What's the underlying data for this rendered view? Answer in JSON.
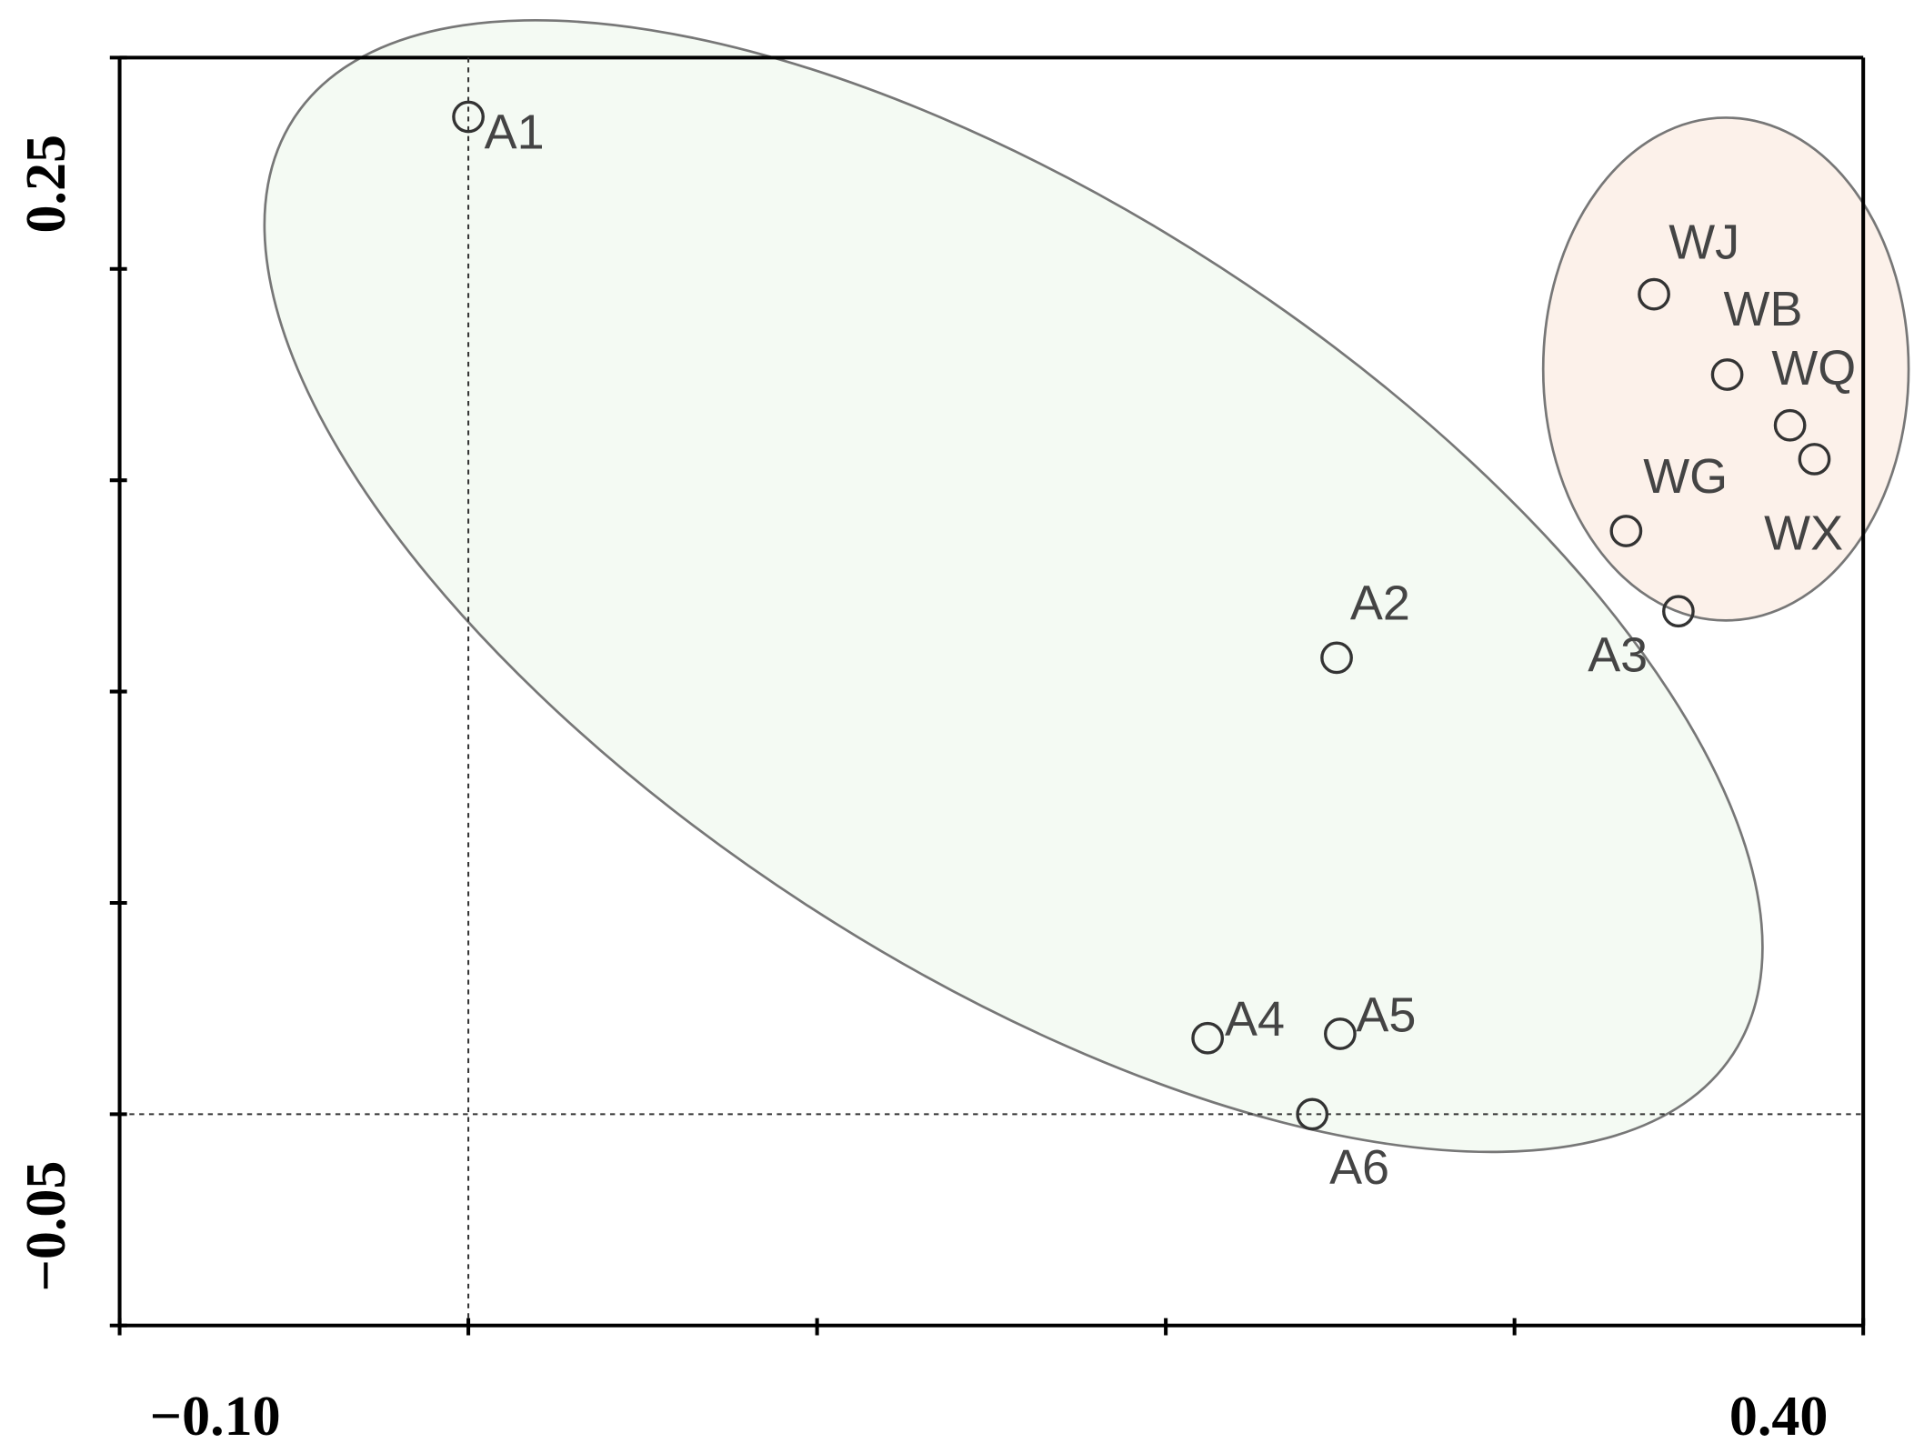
{
  "chart_data": {
    "type": "scatter",
    "labels": [
      "A1",
      "A2",
      "A3",
      "A4",
      "A5",
      "A6",
      "WJ",
      "WB",
      "WQ",
      "WX",
      "WG"
    ],
    "x": [
      0.0,
      0.249,
      0.347,
      0.212,
      0.25,
      0.242,
      0.34,
      0.361,
      0.379,
      0.386,
      0.332
    ],
    "y": [
      0.236,
      0.108,
      0.119,
      0.018,
      0.019,
      0.0,
      0.194,
      0.175,
      0.163,
      0.155,
      0.138
    ],
    "marker_color": "#333333",
    "xlim": [
      -0.1,
      0.4
    ],
    "ylim": [
      -0.05,
      0.25
    ],
    "xticks": [
      {
        "value": -0.1,
        "label": "−0.10"
      },
      {
        "value": 0.4,
        "label": "0.40"
      }
    ],
    "yticks": [
      {
        "value": 0.25,
        "label": "0.25"
      },
      {
        "value": -0.05,
        "label": "−0.05"
      }
    ],
    "x_minor_ticks": [
      0.0,
      0.1,
      0.2,
      0.3
    ],
    "y_minor_ticks": [
      0.0,
      0.05,
      0.1,
      0.15,
      0.2
    ],
    "zero_lines": true
  }
}
